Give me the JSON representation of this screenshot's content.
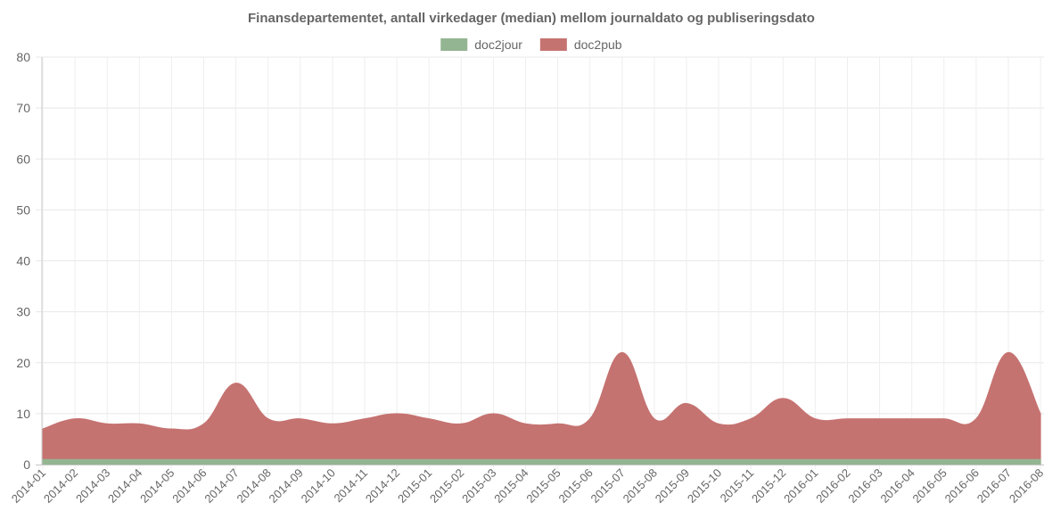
{
  "chart_data": {
    "type": "area",
    "title": "Finansdepartementet, antall virkedager (median) mellom journaldato og publiseringsdato",
    "xlabel": "",
    "ylabel": "",
    "ylim": [
      0,
      80
    ],
    "yticks": [
      0,
      10,
      20,
      30,
      40,
      50,
      60,
      70,
      80
    ],
    "grid": true,
    "legend_position": "top-center",
    "categories": [
      "2014-01",
      "2014-02",
      "2014-03",
      "2014-04",
      "2014-05",
      "2014-06",
      "2014-07",
      "2014-08",
      "2014-09",
      "2014-10",
      "2014-11",
      "2014-12",
      "2015-01",
      "2015-02",
      "2015-03",
      "2015-04",
      "2015-05",
      "2015-06",
      "2015-07",
      "2015-08",
      "2015-09",
      "2015-10",
      "2015-11",
      "2015-12",
      "2016-01",
      "2016-02",
      "2016-03",
      "2016-04",
      "2016-05",
      "2016-06",
      "2016-07",
      "2016-08"
    ],
    "series": [
      {
        "name": "doc2jour",
        "color": "#93b591",
        "values": [
          1,
          1,
          1,
          1,
          1,
          1,
          1,
          1,
          1,
          1,
          1,
          1,
          1,
          1,
          1,
          1,
          1,
          1,
          1,
          1,
          1,
          1,
          1,
          1,
          1,
          1,
          1,
          1,
          1,
          1,
          1,
          1
        ]
      },
      {
        "name": "doc2pub",
        "color": "#c57371",
        "values": [
          7,
          9,
          8,
          8,
          7,
          8,
          16,
          9,
          9,
          8,
          9,
          10,
          9,
          8,
          10,
          8,
          8,
          9,
          22,
          9,
          12,
          8,
          9,
          13,
          9,
          9,
          9,
          9,
          9,
          9,
          22,
          10
        ]
      }
    ]
  }
}
